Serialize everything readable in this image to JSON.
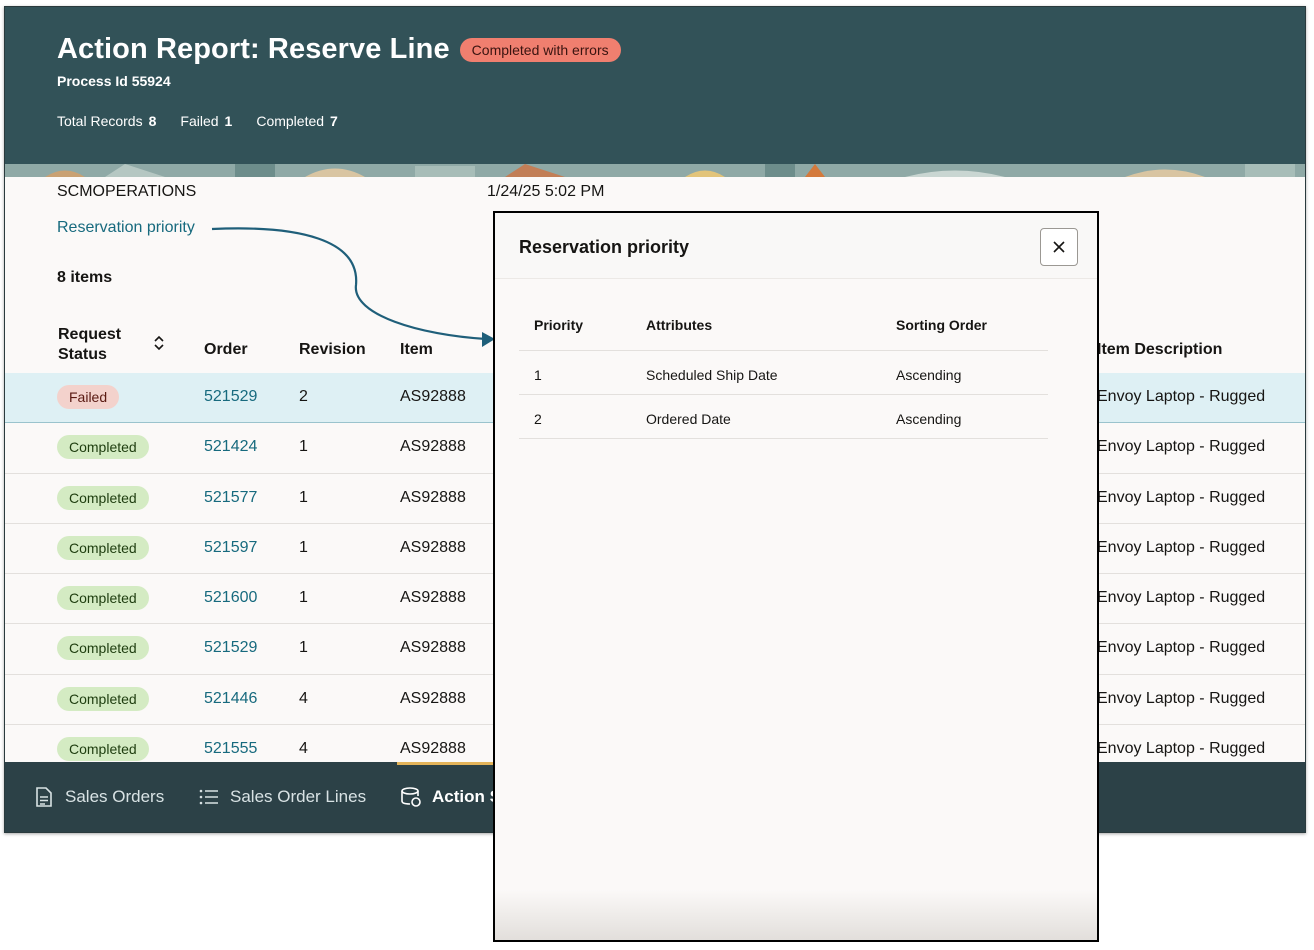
{
  "header": {
    "title": "Action Report: Reserve Line",
    "status": "Completed with errors",
    "process_id": "Process Id 55924",
    "stats": [
      {
        "label": "Total Records",
        "value": "8"
      },
      {
        "label": "Failed",
        "value": "1"
      },
      {
        "label": "Completed",
        "value": "7"
      }
    ]
  },
  "meta": {
    "user": "SCMOPERATIONS",
    "date": "1/24/25 5:02 PM",
    "reservation_link": "Reservation priority",
    "items_count": "8 items"
  },
  "table": {
    "columns": {
      "status": "Request Status",
      "order": "Order",
      "revision": "Revision",
      "item": "Item",
      "description": "Item Description"
    },
    "rows": [
      {
        "status": "Failed",
        "order": "521529",
        "revision": "2",
        "item": "AS92888",
        "description": "Envoy Laptop - Rugged"
      },
      {
        "status": "Completed",
        "order": "521424",
        "revision": "1",
        "item": "AS92888",
        "description": "Envoy Laptop - Rugged"
      },
      {
        "status": "Completed",
        "order": "521577",
        "revision": "1",
        "item": "AS92888",
        "description": "Envoy Laptop - Rugged"
      },
      {
        "status": "Completed",
        "order": "521597",
        "revision": "1",
        "item": "AS92888",
        "description": "Envoy Laptop - Rugged"
      },
      {
        "status": "Completed",
        "order": "521600",
        "revision": "1",
        "item": "AS92888",
        "description": "Envoy Laptop - Rugged"
      },
      {
        "status": "Completed",
        "order": "521529",
        "revision": "1",
        "item": "AS92888",
        "description": "Envoy Laptop - Rugged"
      },
      {
        "status": "Completed",
        "order": "521446",
        "revision": "4",
        "item": "AS92888",
        "description": "Envoy Laptop - Rugged"
      },
      {
        "status": "Completed",
        "order": "521555",
        "revision": "4",
        "item": "AS92888",
        "description": "Envoy Laptop - Rugged"
      }
    ]
  },
  "nav": {
    "items": [
      {
        "label": "Sales Orders",
        "icon": "document-icon"
      },
      {
        "label": "Sales Order Lines",
        "icon": "list-icon"
      },
      {
        "label": "Action S",
        "icon": "action-report-icon"
      }
    ]
  },
  "modal": {
    "title": "Reservation priority",
    "columns": {
      "priority": "Priority",
      "attributes": "Attributes",
      "sorting": "Sorting Order"
    },
    "rows": [
      {
        "priority": "1",
        "attribute": "Scheduled Ship Date",
        "sorting": "Ascending"
      },
      {
        "priority": "2",
        "attribute": "Ordered Date",
        "sorting": "Ascending"
      }
    ]
  },
  "colors": {
    "header_bg": "#325258",
    "nav_bg": "#2c4147",
    "link": "#176a7e",
    "error_pill": "#f07f6f",
    "failed_pill": "#f3d2cc",
    "completed_pill": "#d4ebc3",
    "selected_row": "#def0f4",
    "active_tab_bar": "#e4b45a"
  }
}
